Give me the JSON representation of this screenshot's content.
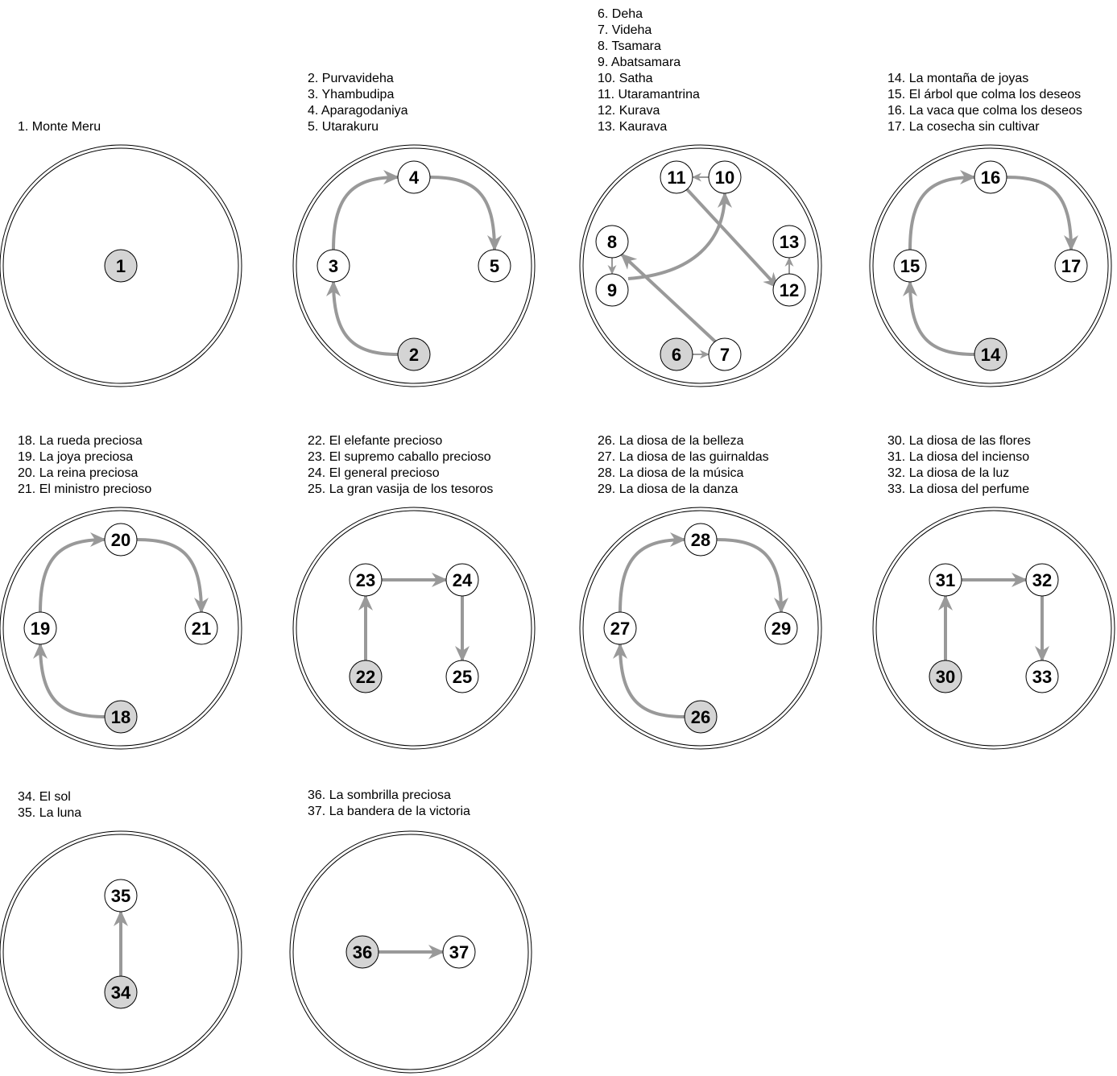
{
  "colors": {
    "arrow": "#999999",
    "node_fill": "#ffffff",
    "start_fill": "#d4d4d4",
    "stroke": "#000000"
  },
  "panels": [
    {
      "legend": [
        "1. Monte Meru"
      ],
      "nodes": [
        {
          "label": "1",
          "start": true
        }
      ],
      "arrows": []
    },
    {
      "legend": [
        "2. Purvavideha",
        "3. Yhambudipa",
        "4. Aparagodaniya",
        "5. Utarakuru"
      ],
      "nodes": [
        {
          "label": "2",
          "start": true
        },
        {
          "label": "3"
        },
        {
          "label": "4"
        },
        {
          "label": "5"
        }
      ],
      "arrows": [
        {
          "from": "2",
          "to": "3"
        },
        {
          "from": "3",
          "to": "4"
        },
        {
          "from": "4",
          "to": "5"
        }
      ]
    },
    {
      "legend": [
        "6. Deha",
        "7. Videha",
        "8. Tsamara",
        "9. Abatsamara",
        "10. Satha",
        "11. Utaramantrina",
        "12. Kurava",
        "13. Kaurava"
      ],
      "nodes": [
        {
          "label": "6",
          "start": true
        },
        {
          "label": "7"
        },
        {
          "label": "8"
        },
        {
          "label": "9"
        },
        {
          "label": "10"
        },
        {
          "label": "11"
        },
        {
          "label": "12"
        },
        {
          "label": "13"
        }
      ],
      "arrows": [
        {
          "from": "6",
          "to": "7"
        },
        {
          "from": "7",
          "to": "8"
        },
        {
          "from": "8",
          "to": "9"
        },
        {
          "from": "9",
          "to": "10"
        },
        {
          "from": "10",
          "to": "11"
        },
        {
          "from": "11",
          "to": "12"
        },
        {
          "from": "12",
          "to": "13"
        }
      ]
    },
    {
      "legend": [
        "14. La montaña de joyas",
        "15. El árbol que colma los deseos",
        "16. La vaca que colma los deseos",
        "17. La cosecha sin cultivar"
      ],
      "nodes": [
        {
          "label": "14",
          "start": true
        },
        {
          "label": "15"
        },
        {
          "label": "16"
        },
        {
          "label": "17"
        }
      ],
      "arrows": [
        {
          "from": "14",
          "to": "15"
        },
        {
          "from": "15",
          "to": "16"
        },
        {
          "from": "16",
          "to": "17"
        }
      ]
    },
    {
      "legend": [
        "18. La rueda preciosa",
        "19. La joya preciosa",
        "20. La reina preciosa",
        "21. El ministro precioso"
      ],
      "nodes": [
        {
          "label": "18",
          "start": true
        },
        {
          "label": "19"
        },
        {
          "label": "20"
        },
        {
          "label": "21"
        }
      ],
      "arrows": [
        {
          "from": "18",
          "to": "19"
        },
        {
          "from": "19",
          "to": "20"
        },
        {
          "from": "20",
          "to": "21"
        }
      ]
    },
    {
      "legend": [
        "22. El elefante precioso",
        "23. El supremo caballo precioso",
        "24. El general precioso",
        "25. La gran vasija de los tesoros"
      ],
      "nodes": [
        {
          "label": "22",
          "start": true
        },
        {
          "label": "23"
        },
        {
          "label": "24"
        },
        {
          "label": "25"
        }
      ],
      "arrows": [
        {
          "from": "22",
          "to": "23"
        },
        {
          "from": "23",
          "to": "24"
        },
        {
          "from": "24",
          "to": "25"
        }
      ]
    },
    {
      "legend": [
        "26. La diosa de la belleza",
        "27. La diosa de las guirnaldas",
        "28. La diosa de la música",
        "29. La diosa de la danza"
      ],
      "nodes": [
        {
          "label": "26",
          "start": true
        },
        {
          "label": "27"
        },
        {
          "label": "28"
        },
        {
          "label": "29"
        }
      ],
      "arrows": [
        {
          "from": "26",
          "to": "27"
        },
        {
          "from": "27",
          "to": "28"
        },
        {
          "from": "28",
          "to": "29"
        }
      ]
    },
    {
      "legend": [
        "30. La diosa de las flores",
        "31. La diosa del incienso",
        "32. La diosa de la luz",
        "33. La diosa del perfume"
      ],
      "nodes": [
        {
          "label": "30",
          "start": true
        },
        {
          "label": "31"
        },
        {
          "label": "32"
        },
        {
          "label": "33"
        }
      ],
      "arrows": [
        {
          "from": "30",
          "to": "31"
        },
        {
          "from": "31",
          "to": "32"
        },
        {
          "from": "32",
          "to": "33"
        }
      ]
    },
    {
      "legend": [
        "34. El sol",
        "35. La luna"
      ],
      "nodes": [
        {
          "label": "34",
          "start": true
        },
        {
          "label": "35"
        }
      ],
      "arrows": [
        {
          "from": "34",
          "to": "35"
        }
      ]
    },
    {
      "legend": [
        "36. La sombrilla preciosa",
        "37. La bandera de la victoria"
      ],
      "nodes": [
        {
          "label": "36",
          "start": true
        },
        {
          "label": "37"
        }
      ],
      "arrows": [
        {
          "from": "36",
          "to": "37"
        }
      ]
    }
  ]
}
